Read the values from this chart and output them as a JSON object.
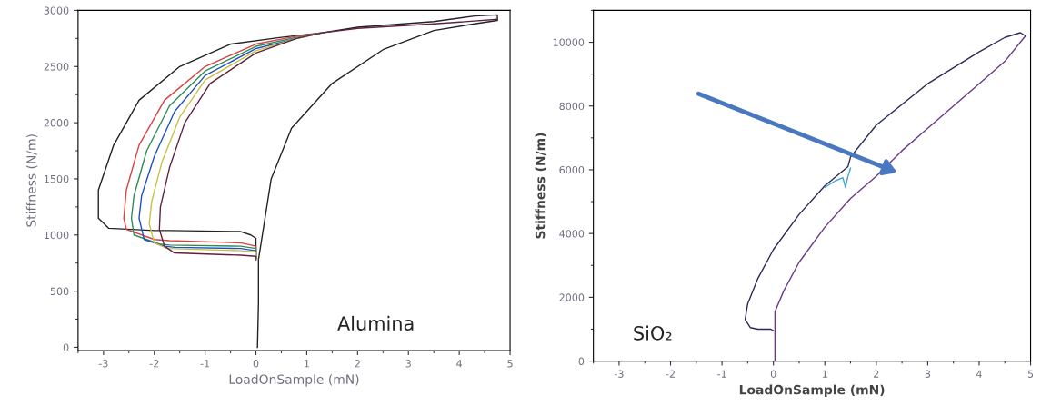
{
  "chart_data": [
    {
      "type": "line",
      "xlabel": "LoadOnSample (mN)",
      "ylabel": "Stiffness (N/m)",
      "annotations": [
        "Alumina"
      ],
      "xlim": [
        -3.5,
        5
      ],
      "ylim": [
        -30,
        3000
      ],
      "xticks": [
        -3,
        -2,
        -1,
        0,
        1,
        2,
        3,
        4,
        5
      ],
      "yticks": [
        0,
        500,
        1000,
        1500,
        2000,
        2500,
        3000
      ],
      "grid": false,
      "legend": false,
      "series": [
        {
          "color": "#222222",
          "x": [
            0.03,
            0.05,
            0.05,
            0.3,
            0.7,
            1.5,
            2.5,
            3.5,
            4.3,
            4.75,
            4.75,
            4.3,
            3.5,
            2.0,
            1.3,
            0.5,
            -0.5,
            -1.5,
            -2.3,
            -2.8,
            -3.1,
            -3.1,
            -2.9,
            -2.0,
            -1.7,
            -0.3,
            -0.1,
            0.0,
            0.0
          ],
          "values": [
            0,
            400,
            780,
            1500,
            1950,
            2350,
            2650,
            2820,
            2880,
            2910,
            2960,
            2950,
            2900,
            2850,
            2800,
            2760,
            2700,
            2500,
            2200,
            1800,
            1400,
            1150,
            1060,
            1040,
            1040,
            1030,
            1000,
            970,
            780
          ]
        },
        {
          "color": "#d94040",
          "x": [
            1.3,
            0.8,
            0.0,
            -1.0,
            -1.8,
            -2.3,
            -2.55,
            -2.6,
            -2.55,
            -2.0,
            -1.7,
            -0.3,
            0.0,
            0.0
          ],
          "values": [
            2800,
            2770,
            2700,
            2500,
            2200,
            1800,
            1400,
            1150,
            1050,
            960,
            950,
            930,
            900,
            790
          ]
        },
        {
          "color": "#2e8b57",
          "x": [
            1.3,
            0.8,
            0.0,
            -1.0,
            -1.7,
            -2.15,
            -2.4,
            -2.45,
            -2.4,
            -1.9,
            -1.7,
            -0.3,
            0.0,
            0.0
          ],
          "values": [
            2800,
            2760,
            2680,
            2460,
            2150,
            1750,
            1350,
            1150,
            1000,
            920,
            910,
            900,
            880,
            790
          ]
        },
        {
          "color": "#2050c0",
          "x": [
            1.3,
            0.8,
            0.0,
            -1.0,
            -1.6,
            -2.0,
            -2.25,
            -2.3,
            -2.2,
            -1.8,
            -1.6,
            -0.3,
            0.0,
            0.0
          ],
          "values": [
            2800,
            2750,
            2660,
            2420,
            2100,
            1700,
            1350,
            1150,
            960,
            900,
            890,
            880,
            860,
            790
          ]
        },
        {
          "color": "#c8c040",
          "x": [
            1.3,
            0.8,
            0.0,
            -1.0,
            -1.5,
            -1.85,
            -2.05,
            -2.1,
            -2.0,
            -1.75,
            -0.3,
            0.0,
            0.0
          ],
          "values": [
            2800,
            2750,
            2640,
            2380,
            2050,
            1650,
            1300,
            1100,
            930,
            880,
            860,
            850,
            790
          ]
        },
        {
          "color": "#602040",
          "x": [
            4.75,
            3.5,
            2.0,
            1.3,
            0.8,
            0.0,
            -0.9,
            -1.4,
            -1.7,
            -1.88,
            -1.9,
            -1.8,
            -1.6,
            -0.3,
            0.0,
            0.0
          ],
          "values": [
            2920,
            2880,
            2840,
            2800,
            2750,
            2620,
            2350,
            2000,
            1600,
            1250,
            1050,
            900,
            840,
            820,
            810,
            790
          ]
        }
      ]
    },
    {
      "type": "line",
      "xlabel": "LoadOnSample (mN)",
      "ylabel": "Stiffness (N/m)",
      "annotations": [
        "SiO₂"
      ],
      "xlim": [
        -3.5,
        5
      ],
      "ylim": [
        0,
        11000
      ],
      "xticks": [
        -3,
        -2,
        -1,
        0,
        1,
        2,
        3,
        4,
        5
      ],
      "yticks": [
        0,
        2000,
        4000,
        6000,
        8000,
        10000
      ],
      "grid": false,
      "legend": false,
      "series": [
        {
          "color": "#6a3a8a",
          "x": [
            0.03,
            0.03,
            0.2,
            0.5,
            1.0,
            1.5,
            2.0,
            2.5,
            3.0,
            3.5,
            4.0,
            4.5,
            4.9
          ],
          "values": [
            0,
            1550,
            2200,
            3100,
            4200,
            5100,
            5800,
            6600,
            7300,
            8000,
            8700,
            9400,
            10200
          ]
        },
        {
          "color": "#2a2a5a",
          "x": [
            4.9,
            4.8,
            4.5,
            4.0,
            3.0,
            2.0,
            1.5,
            1.45,
            1.3,
            1.0,
            0.5,
            0.0,
            -0.3,
            -0.5,
            -0.55,
            -0.45,
            -0.3,
            -0.05,
            0.0
          ],
          "values": [
            10200,
            10300,
            10150,
            9700,
            8700,
            7400,
            6400,
            6100,
            5900,
            5500,
            4600,
            3500,
            2600,
            1800,
            1300,
            1050,
            1000,
            1000,
            950
          ]
        },
        {
          "color": "#40a8d0",
          "x": [
            1.0,
            1.2,
            1.35,
            1.4,
            1.45,
            1.5
          ],
          "values": [
            5450,
            5650,
            5750,
            5450,
            5800,
            6050
          ]
        }
      ]
    }
  ]
}
